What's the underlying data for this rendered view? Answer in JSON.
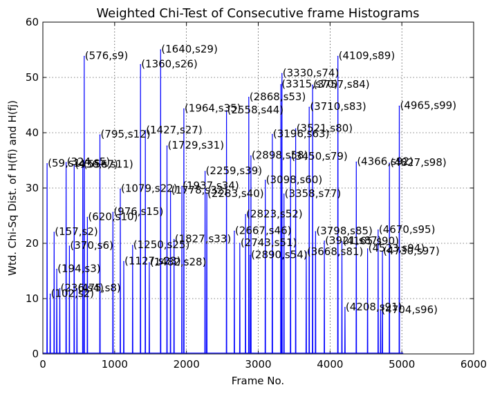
{
  "chart_data": {
    "type": "line",
    "title": "Weighted Chi-Test of Consecutive frame Histograms",
    "xlabel": "Frame No.",
    "ylabel": "Wtd. Chi-Sq Dist. of H(fi) and H(fj)",
    "xlim": [
      0,
      6000
    ],
    "ylim": [
      0,
      60
    ],
    "xticks": [
      0,
      1000,
      2000,
      3000,
      4000,
      5000,
      6000
    ],
    "yticks": [
      0,
      10,
      20,
      30,
      40,
      50,
      60
    ],
    "grid": true,
    "line_color": "#0000ff",
    "peaks": [
      {
        "x": 59,
        "y": 34.4,
        "label": "(59,s1)"
      },
      {
        "x": 102,
        "y": 10.8,
        "label": "(102,s2)"
      },
      {
        "x": 157,
        "y": 22.0,
        "label": "(157,s2)"
      },
      {
        "x": 194,
        "y": 15.3,
        "label": "(194,s3)"
      },
      {
        "x": 236,
        "y": 11.8,
        "label": "(236,s4)"
      },
      {
        "x": 324,
        "y": 34.6,
        "label": "(324,s5)"
      },
      {
        "x": 370,
        "y": 19.5,
        "label": "(370,s6)"
      },
      {
        "x": 436,
        "y": 34.2,
        "label": "(436,s7)"
      },
      {
        "x": 475,
        "y": 11.8,
        "label": "(475,s8)"
      },
      {
        "x": 556,
        "y": 34.2,
        "label": "(556,s11)"
      },
      {
        "x": 576,
        "y": 53.8,
        "label": "(576,s9)"
      },
      {
        "x": 620,
        "y": 24.7,
        "label": "(620,s10)"
      },
      {
        "x": 795,
        "y": 39.6,
        "label": "(795,s12)"
      },
      {
        "x": 976,
        "y": 25.6,
        "label": "(976,s15)"
      },
      {
        "x": 1079,
        "y": 29.8,
        "label": "(1079,s22)"
      },
      {
        "x": 1127,
        "y": 16.7,
        "label": "(1127,s23)"
      },
      {
        "x": 1250,
        "y": 19.6,
        "label": "(1250,s25)"
      },
      {
        "x": 1360,
        "y": 52.3,
        "label": "(1360,s26)"
      },
      {
        "x": 1427,
        "y": 40.4,
        "label": "(1427,s27)"
      },
      {
        "x": 1482,
        "y": 16.5,
        "label": "(1482,s28)"
      },
      {
        "x": 1640,
        "y": 55.0,
        "label": "(1640,s29)"
      },
      {
        "x": 1729,
        "y": 37.6,
        "label": "(1729,s31)"
      },
      {
        "x": 1778,
        "y": 29.5,
        "label": "(1778,s32)"
      },
      {
        "x": 1827,
        "y": 20.7,
        "label": "(1827,s33)"
      },
      {
        "x": 1937,
        "y": 30.3,
        "label": "(1937,s34)"
      },
      {
        "x": 1964,
        "y": 44.3,
        "label": "(1964,s35)"
      },
      {
        "x": 2259,
        "y": 33.0,
        "label": "(2259,s39)"
      },
      {
        "x": 2283,
        "y": 28.9,
        "label": "(2283,s40)"
      },
      {
        "x": 2558,
        "y": 44.0,
        "label": "(2558,s44)"
      },
      {
        "x": 2667,
        "y": 22.2,
        "label": "(2667,s46)"
      },
      {
        "x": 2743,
        "y": 20.0,
        "label": "(2743,s51)"
      },
      {
        "x": 2823,
        "y": 25.2,
        "label": "(2823,s52)"
      },
      {
        "x": 2868,
        "y": 46.4,
        "label": "(2868,s53)"
      },
      {
        "x": 2890,
        "y": 17.8,
        "label": "(2890,s54)"
      },
      {
        "x": 2898,
        "y": 35.8,
        "label": "(2898,s58)"
      },
      {
        "x": 3098,
        "y": 31.4,
        "label": "(3098,s60)"
      },
      {
        "x": 3196,
        "y": 39.7,
        "label": "(3196,s63)"
      },
      {
        "x": 3315,
        "y": 48.7,
        "label": "(3315,s70)"
      },
      {
        "x": 3330,
        "y": 50.7,
        "label": "(3330,s74)"
      },
      {
        "x": 3358,
        "y": 28.9,
        "label": "(3358,s77)"
      },
      {
        "x": 3450,
        "y": 35.6,
        "label": "(3450,s79)"
      },
      {
        "x": 3521,
        "y": 40.7,
        "label": "(3521,s80)"
      },
      {
        "x": 3668,
        "y": 18.4,
        "label": "(3668,s81)"
      },
      {
        "x": 3710,
        "y": 44.6,
        "label": "(3710,s83)"
      },
      {
        "x": 3757,
        "y": 48.6,
        "label": "(3757,s84)"
      },
      {
        "x": 3798,
        "y": 22.1,
        "label": "(3798,s85)"
      },
      {
        "x": 3921,
        "y": 20.4,
        "label": "(3921,s87)"
      },
      {
        "x": 4109,
        "y": 53.8,
        "label": "(4109,s89)"
      },
      {
        "x": 4165,
        "y": 20.3,
        "label": "(4165,s90)"
      },
      {
        "x": 4208,
        "y": 8.4,
        "label": "(4208,s91)"
      },
      {
        "x": 4366,
        "y": 34.7,
        "label": "(4366,s92)"
      },
      {
        "x": 4523,
        "y": 19.0,
        "label": "(4523,s94)"
      },
      {
        "x": 4670,
        "y": 22.4,
        "label": "(4670,s95)"
      },
      {
        "x": 4704,
        "y": 7.9,
        "label": "(4704,s96)"
      },
      {
        "x": 4730,
        "y": 18.5,
        "label": "(4730,s97)"
      },
      {
        "x": 4827,
        "y": 34.5,
        "label": "(4827,s98)"
      },
      {
        "x": 4965,
        "y": 44.8,
        "label": "(4965,s99)"
      }
    ]
  }
}
